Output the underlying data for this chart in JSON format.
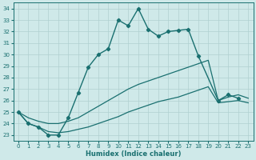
{
  "xlabel": "Humidex (Indice chaleur)",
  "xlim": [
    -0.5,
    23.5
  ],
  "ylim": [
    22.5,
    34.5
  ],
  "background_color": "#cfe9e9",
  "grid_color": "#b0d0d0",
  "line_color": "#1a7070",
  "main_line": {
    "x": [
      0,
      1,
      2,
      3,
      4,
      5,
      6,
      7,
      8,
      9,
      10,
      11,
      12,
      13,
      14,
      15,
      16,
      17,
      18,
      20,
      21,
      22
    ],
    "y": [
      25.0,
      24.0,
      23.7,
      23.0,
      23.0,
      24.5,
      26.7,
      28.9,
      30.0,
      30.5,
      33.0,
      32.5,
      34.0,
      32.2,
      31.6,
      32.0,
      32.1,
      32.2,
      29.9,
      26.0,
      26.5,
      26.2
    ]
  },
  "env_upper": {
    "x": [
      0,
      1,
      2,
      3,
      4,
      5,
      6,
      7,
      8,
      9,
      10,
      11,
      12,
      13,
      14,
      15,
      16,
      17,
      18,
      19,
      20,
      21,
      22,
      23
    ],
    "y": [
      25.0,
      24.5,
      24.2,
      24.0,
      24.0,
      24.2,
      24.5,
      25.0,
      25.5,
      26.0,
      26.5,
      27.0,
      27.4,
      27.7,
      28.0,
      28.3,
      28.6,
      28.9,
      29.2,
      29.5,
      26.0,
      26.3,
      26.5,
      26.2
    ]
  },
  "env_lower": {
    "x": [
      0,
      1,
      2,
      3,
      4,
      5,
      6,
      7,
      8,
      9,
      10,
      11,
      12,
      13,
      14,
      15,
      16,
      17,
      18,
      19,
      20,
      21,
      22,
      23
    ],
    "y": [
      25.0,
      24.0,
      23.7,
      23.3,
      23.2,
      23.3,
      23.5,
      23.7,
      24.0,
      24.3,
      24.6,
      25.0,
      25.3,
      25.6,
      25.9,
      26.1,
      26.3,
      26.6,
      26.9,
      27.2,
      25.8,
      25.9,
      26.0,
      25.8
    ]
  },
  "xticks": [
    0,
    1,
    2,
    3,
    4,
    5,
    6,
    7,
    8,
    9,
    10,
    11,
    12,
    13,
    14,
    15,
    16,
    17,
    18,
    19,
    20,
    21,
    22,
    23
  ],
  "yticks": [
    23,
    24,
    25,
    26,
    27,
    28,
    29,
    30,
    31,
    32,
    33,
    34
  ]
}
